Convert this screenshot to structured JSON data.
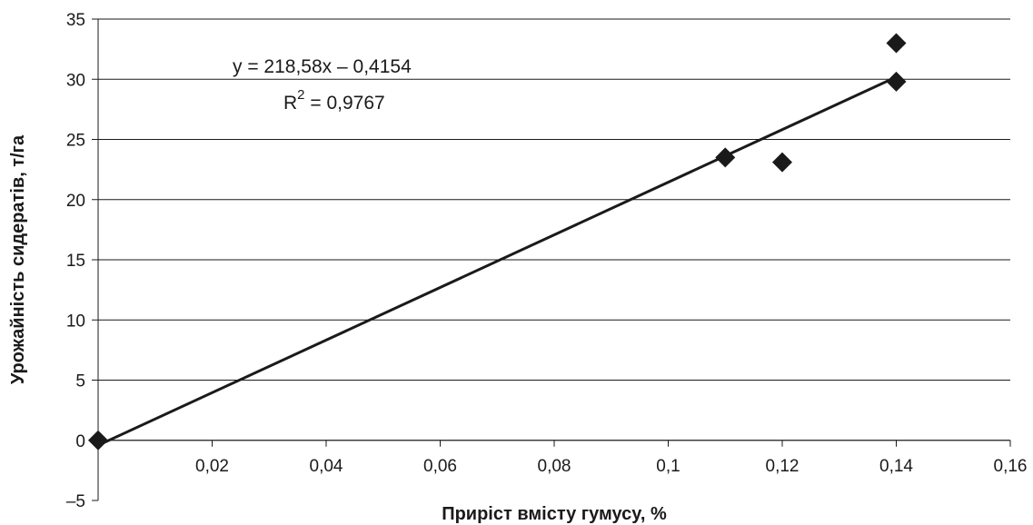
{
  "chart_data": {
    "type": "scatter",
    "xlabel": "Приріст вмісту гумусу, %",
    "ylabel": "Урожайність сидератів, т/га",
    "xlim": [
      0,
      0.16
    ],
    "ylim": [
      -5,
      35
    ],
    "grid": "horizontal",
    "x_ticks": [
      "0,02",
      "0,04",
      "0,06",
      "0,08",
      "0,1",
      "0,12",
      "0,14",
      "0,16"
    ],
    "x_tick_values": [
      0.02,
      0.04,
      0.06,
      0.08,
      0.1,
      0.12,
      0.14,
      0.16
    ],
    "y_ticks": [
      "35",
      "30",
      "25",
      "20",
      "15",
      "10",
      "5",
      "0",
      "–5"
    ],
    "y_tick_values": [
      35,
      30,
      25,
      20,
      15,
      10,
      5,
      0,
      -5
    ],
    "points": [
      {
        "x": 0,
        "y": 0
      },
      {
        "x": 0.11,
        "y": 23.5
      },
      {
        "x": 0.12,
        "y": 23.1
      },
      {
        "x": 0.14,
        "y": 29.8
      },
      {
        "x": 0.14,
        "y": 33
      }
    ],
    "trendline": {
      "slope": 218.58,
      "intercept": -0.4154,
      "equation": "y = 218,58x – 0,4154",
      "r_squared_prefix": "R",
      "r_squared_sup": "2",
      "r_squared_value": " = 0,9767"
    },
    "colors": {
      "marker": "#1a1a1a",
      "line": "#1a1a1a",
      "grid": "#1a1a1a"
    }
  }
}
